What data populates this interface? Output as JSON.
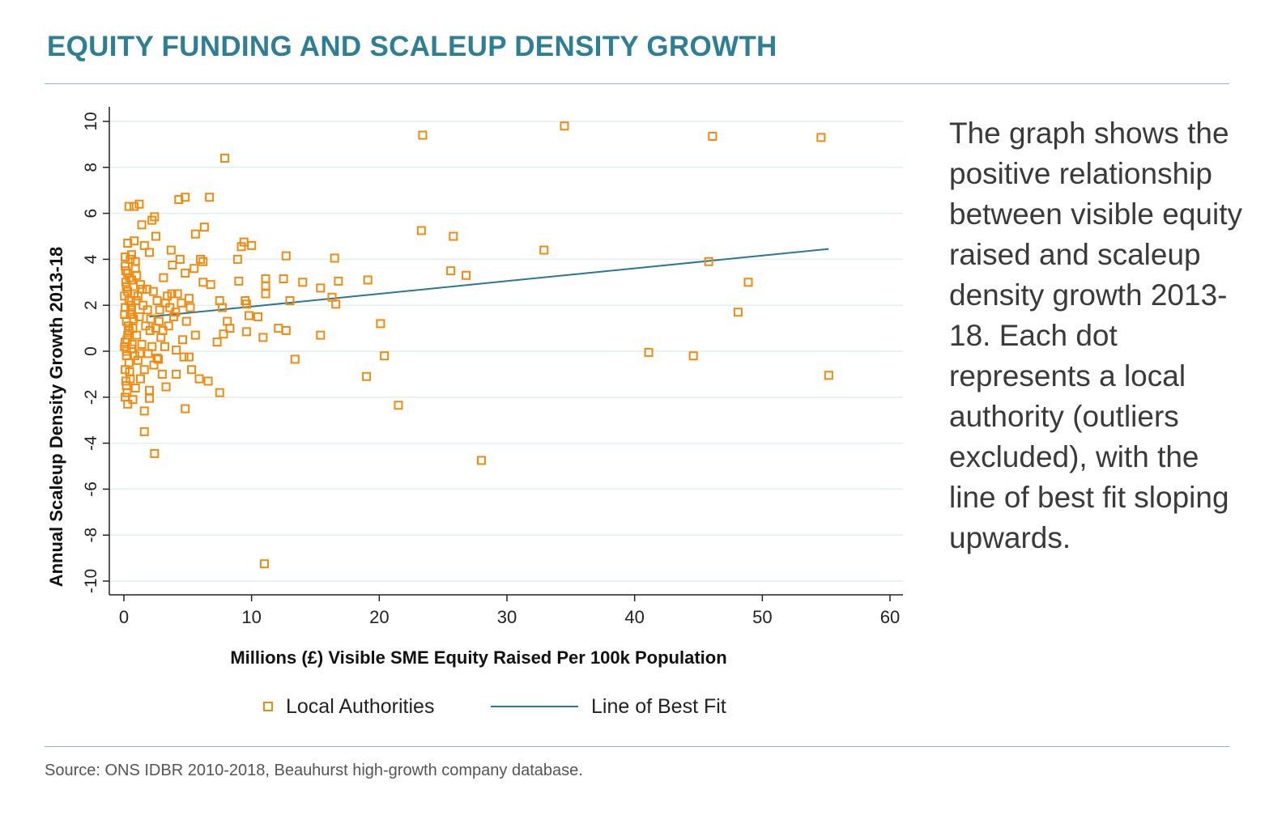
{
  "title": "EQUITY FUNDING AND SCALEUP DENSITY GROWTH",
  "description": "The graph shows the positive relationship between visible equity raised and scaleup density growth 2013-18. Each dot represents a local authority (outliers excluded), with the line of best fit sloping upwards.",
  "source": "Source: ONS IDBR 2010-2018, Beauhurst high-growth company database.",
  "colors": {
    "title": "#2e7f94",
    "points": "#f28a10",
    "fit_line": "#2a7795",
    "rule": "#8fb7c2"
  },
  "chart_data": {
    "type": "scatter",
    "xlabel": "Millions (£) Visible SME Equity Raised Per 100k Population",
    "ylabel": "Annual Scaleup Density Growth 2013-18",
    "xlim": [
      0,
      60
    ],
    "ylim": [
      -10,
      10
    ],
    "xticks": [
      "0",
      "10",
      "20",
      "30",
      "40",
      "50",
      "60"
    ],
    "yticks": [
      "10",
      "8",
      "6",
      "4",
      "2",
      "0",
      "-2",
      "-4",
      "-6",
      "-8",
      "-10"
    ],
    "grid": true,
    "legend_position": "bottom",
    "series": [
      {
        "name": "Local Authorities",
        "marker": "hollow-square",
        "points": [
          [
            23.4,
            9.4
          ],
          [
            34.5,
            9.8
          ],
          [
            46.1,
            9.35
          ],
          [
            54.6,
            9.3
          ],
          [
            7.9,
            8.4
          ],
          [
            0.4,
            6.3
          ],
          [
            0.8,
            6.3
          ],
          [
            1.2,
            6.4
          ],
          [
            4.3,
            6.6
          ],
          [
            4.8,
            6.7
          ],
          [
            6.7,
            6.7
          ],
          [
            2.2,
            5.7
          ],
          [
            2.4,
            5.85
          ],
          [
            1.4,
            5.5
          ],
          [
            6.3,
            5.4
          ],
          [
            5.6,
            5.1
          ],
          [
            2.5,
            5.0
          ],
          [
            23.3,
            5.25
          ],
          [
            25.8,
            5.0
          ],
          [
            0.3,
            4.7
          ],
          [
            0.8,
            4.8
          ],
          [
            1.6,
            4.6
          ],
          [
            2.0,
            4.3
          ],
          [
            3.7,
            4.4
          ],
          [
            9.4,
            4.75
          ],
          [
            9.2,
            4.55
          ],
          [
            10.0,
            4.6
          ],
          [
            32.9,
            4.4
          ],
          [
            0.1,
            4.1
          ],
          [
            0.6,
            4.2
          ],
          [
            0.9,
            3.9
          ],
          [
            4.4,
            4.0
          ],
          [
            6.0,
            4.0
          ],
          [
            6.2,
            3.9
          ],
          [
            8.9,
            4.0
          ],
          [
            12.7,
            4.15
          ],
          [
            16.5,
            4.05
          ],
          [
            45.8,
            3.9
          ],
          [
            3.8,
            3.75
          ],
          [
            5.5,
            3.6
          ],
          [
            4.8,
            3.4
          ],
          [
            25.6,
            3.5
          ],
          [
            26.8,
            3.3
          ],
          [
            3.1,
            3.2
          ],
          [
            6.2,
            3.0
          ],
          [
            6.8,
            2.9
          ],
          [
            9.0,
            3.05
          ],
          [
            11.1,
            3.15
          ],
          [
            11.1,
            2.85
          ],
          [
            12.5,
            3.15
          ],
          [
            14.0,
            3.0
          ],
          [
            15.4,
            2.75
          ],
          [
            16.8,
            3.05
          ],
          [
            19.1,
            3.1
          ],
          [
            48.9,
            3.0
          ],
          [
            16.3,
            2.35
          ],
          [
            16.6,
            2.05
          ],
          [
            11.1,
            2.5
          ],
          [
            13.0,
            2.2
          ],
          [
            7.5,
            2.2
          ],
          [
            7.7,
            1.9
          ],
          [
            9.5,
            2.2
          ],
          [
            9.6,
            2.05
          ],
          [
            9.8,
            1.55
          ],
          [
            10.5,
            1.5
          ],
          [
            8.1,
            1.3
          ],
          [
            8.3,
            1.0
          ],
          [
            7.8,
            0.75
          ],
          [
            9.6,
            0.85
          ],
          [
            12.1,
            1.0
          ],
          [
            12.7,
            0.9
          ],
          [
            10.9,
            0.6
          ],
          [
            15.4,
            0.7
          ],
          [
            20.1,
            1.2
          ],
          [
            48.1,
            1.7
          ],
          [
            7.3,
            0.4
          ],
          [
            5.6,
            0.7
          ],
          [
            4.6,
            0.5
          ],
          [
            3.2,
            0.2
          ],
          [
            4.1,
            0.05
          ],
          [
            4.7,
            -0.25
          ],
          [
            5.1,
            -0.25
          ],
          [
            2.7,
            -0.35
          ],
          [
            13.4,
            -0.35
          ],
          [
            20.4,
            -0.2
          ],
          [
            41.1,
            -0.05
          ],
          [
            44.6,
            -0.2
          ],
          [
            3.0,
            -1.0
          ],
          [
            4.1,
            -1.0
          ],
          [
            5.3,
            -0.8
          ],
          [
            5.9,
            -1.2
          ],
          [
            6.6,
            -1.3
          ],
          [
            19.0,
            -1.1
          ],
          [
            55.2,
            -1.05
          ],
          [
            3.3,
            -1.55
          ],
          [
            7.5,
            -1.8
          ],
          [
            2.0,
            -1.7
          ],
          [
            2.0,
            -2.05
          ],
          [
            1.6,
            -2.6
          ],
          [
            4.8,
            -2.5
          ],
          [
            21.5,
            -2.35
          ],
          [
            1.6,
            -3.5
          ],
          [
            2.4,
            -4.45
          ],
          [
            28.0,
            -4.75
          ],
          [
            11.0,
            -9.25
          ],
          [
            0.3,
            -2.3
          ],
          [
            0.1,
            -2.0
          ],
          [
            0.2,
            -1.5
          ],
          [
            0.5,
            -1.2
          ],
          [
            0.1,
            -0.8
          ],
          [
            0.4,
            -0.5
          ],
          [
            0.2,
            -0.2
          ],
          [
            0.6,
            0.1
          ],
          [
            0.1,
            0.4
          ],
          [
            0.3,
            0.7
          ],
          [
            0.7,
            1.0
          ],
          [
            0.2,
            1.3
          ],
          [
            0.5,
            1.6
          ],
          [
            0.1,
            1.9
          ],
          [
            0.4,
            2.2
          ],
          [
            0.8,
            2.5
          ],
          [
            0.2,
            2.8
          ],
          [
            0.6,
            3.1
          ],
          [
            0.3,
            3.4
          ],
          [
            0.1,
            3.7
          ],
          [
            1.0,
            3.3
          ],
          [
            1.3,
            2.9
          ],
          [
            1.1,
            2.4
          ],
          [
            1.5,
            2.0
          ],
          [
            1.2,
            1.5
          ],
          [
            1.7,
            1.1
          ],
          [
            1.0,
            0.7
          ],
          [
            1.4,
            0.3
          ],
          [
            1.9,
            -0.1
          ],
          [
            1.1,
            -0.4
          ],
          [
            1.6,
            -0.8
          ],
          [
            1.3,
            -1.2
          ],
          [
            0.9,
            -1.6
          ],
          [
            0.7,
            -2.1
          ],
          [
            2.3,
            2.6
          ],
          [
            2.6,
            2.2
          ],
          [
            2.8,
            1.8
          ],
          [
            2.1,
            1.4
          ],
          [
            2.5,
            1.0
          ],
          [
            2.9,
            0.6
          ],
          [
            2.2,
            0.2
          ],
          [
            2.6,
            -0.3
          ],
          [
            3.4,
            2.4
          ],
          [
            3.6,
            1.9
          ],
          [
            3.9,
            1.5
          ],
          [
            3.5,
            1.1
          ],
          [
            4.2,
            2.5
          ],
          [
            4.5,
            2.1
          ],
          [
            4.9,
            1.3
          ],
          [
            5.1,
            2.3
          ],
          [
            5.2,
            1.9
          ],
          [
            0.9,
            3.6
          ],
          [
            0.5,
            4.0
          ],
          [
            1.8,
            2.7
          ],
          [
            0.2,
            0.0
          ],
          [
            0.4,
            0.9
          ],
          [
            0.6,
            1.8
          ],
          [
            0.3,
            2.6
          ],
          [
            0.15,
            3.0
          ],
          [
            0.35,
            1.1
          ],
          [
            0.25,
            0.5
          ],
          [
            0.45,
            -0.9
          ],
          [
            0.15,
            -1.3
          ],
          [
            0.55,
            2.0
          ],
          [
            0.05,
            1.6
          ],
          [
            0.75,
            1.4
          ],
          [
            0.65,
            0.3
          ],
          [
            0.85,
            -0.2
          ],
          [
            0.95,
            2.2
          ],
          [
            1.45,
            2.7
          ],
          [
            1.85,
            1.8
          ],
          [
            2.05,
            0.9
          ],
          [
            2.35,
            -0.6
          ],
          [
            2.75,
            1.3
          ],
          [
            3.05,
            0.9
          ],
          [
            3.25,
            2.1
          ],
          [
            3.75,
            2.5
          ],
          [
            4.05,
            1.7
          ],
          [
            0.05,
            2.4
          ],
          [
            0.05,
            0.2
          ],
          [
            0.25,
            -1.8
          ],
          [
            0.45,
            3.2
          ],
          [
            0.15,
            3.5
          ],
          [
            1.25,
            -0.1
          ]
        ]
      },
      {
        "name": "Line of Best Fit",
        "style": "line",
        "points": [
          [
            2.0,
            1.5
          ],
          [
            55.2,
            4.45
          ]
        ]
      }
    ]
  }
}
